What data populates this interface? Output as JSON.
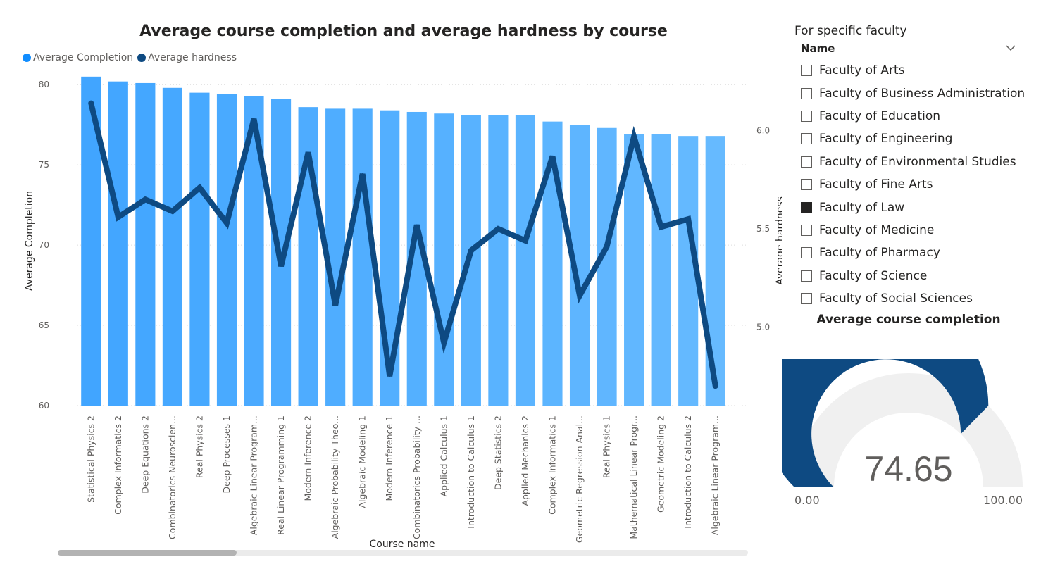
{
  "chart_data": {
    "type": "bar",
    "title": "Average course completion and average hardness by course",
    "xlabel": "Course name",
    "categories": [
      "Statistical Physics 2",
      "Complex Informatics 2",
      "Deep Equations 2",
      "Combinatorics Neuroscien...",
      "Real Physics 2",
      "Deep Processes 1",
      "Algebraic Linear Program...",
      "Real Linear Programming 1",
      "Modern Inference 2",
      "Algebraic Probability Theo...",
      "Algebraic Modeling 1",
      "Modern Inference 1",
      "Combinatorics Probability ...",
      "Applied Calculus 1",
      "Introduction to Calculus 1",
      "Deep Statistics 2",
      "Applied Mechanics 2",
      "Complex Informatics 1",
      "Geometric Regression Anal...",
      "Real Physics 1",
      "Mathematical Linear Progr...",
      "Geometric Modeling 2",
      "Introduction to Calculus 2",
      "Algebraic Linear Program..."
    ],
    "series": [
      {
        "name": "Average Completion",
        "type": "bar",
        "axis": "left",
        "color": "#118DFF",
        "values": [
          80.5,
          80.2,
          80.1,
          79.8,
          79.5,
          79.4,
          79.3,
          79.1,
          78.6,
          78.5,
          78.5,
          78.4,
          78.3,
          78.2,
          78.1,
          78.1,
          78.1,
          77.7,
          77.5,
          77.3,
          76.9,
          76.9,
          76.8,
          76.8
        ]
      },
      {
        "name": "Average hardness",
        "type": "line",
        "axis": "right",
        "color": "#0E4A82",
        "values": [
          6.14,
          5.56,
          5.65,
          5.59,
          5.71,
          5.53,
          6.06,
          5.31,
          5.89,
          5.11,
          5.78,
          4.75,
          5.52,
          4.92,
          5.39,
          5.5,
          5.44,
          5.87,
          5.16,
          5.41,
          5.97,
          5.51,
          5.55,
          4.7
        ]
      }
    ],
    "yaxis_left": {
      "title": "Average Completion",
      "ticks": [
        60,
        65,
        70,
        75,
        80
      ],
      "ylim": [
        60,
        80.8
      ]
    },
    "yaxis_right": {
      "title": "Average hardness",
      "ticks": [
        "5.0",
        "5.5",
        "6.0"
      ],
      "ylim": [
        4.6,
        6.3
      ]
    },
    "legend_position": "top-left",
    "grid": true
  },
  "legend": {
    "completion": "Average Completion",
    "hardness": "Average hardness"
  },
  "slicer": {
    "title": "For specific faculty",
    "header": "Name",
    "items": [
      {
        "label": "Faculty of Arts",
        "checked": false
      },
      {
        "label": "Faculty of Business Administration",
        "checked": false
      },
      {
        "label": "Faculty of Education",
        "checked": false
      },
      {
        "label": "Faculty of Engineering",
        "checked": false
      },
      {
        "label": "Faculty of Environmental Studies",
        "checked": false
      },
      {
        "label": "Faculty of Fine Arts",
        "checked": false
      },
      {
        "label": "Faculty of Law",
        "checked": true
      },
      {
        "label": "Faculty of Medicine",
        "checked": false
      },
      {
        "label": "Faculty of Pharmacy",
        "checked": false
      },
      {
        "label": "Faculty of Science",
        "checked": false
      },
      {
        "label": "Faculty of Social Sciences",
        "checked": false
      }
    ]
  },
  "gauge": {
    "title": "Average course completion",
    "value": 74.65,
    "value_label": "74.65",
    "min": 0,
    "max": 100,
    "min_label": "0.00",
    "max_label": "100.00",
    "fill_color": "#0E4A82",
    "track_color": "#F0F0F0"
  }
}
